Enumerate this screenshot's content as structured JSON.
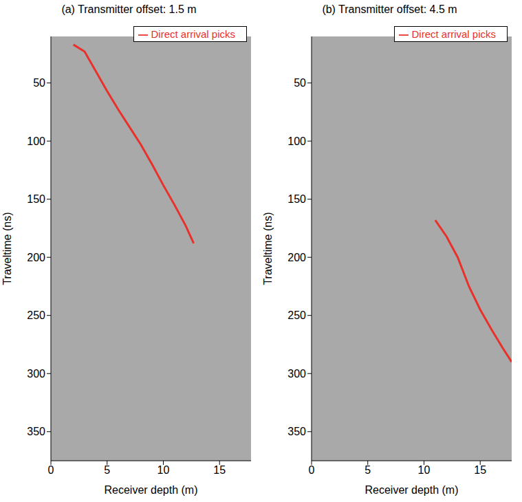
{
  "chart_data": [
    {
      "type": "line",
      "title": "(a) Transmitter offset: 1.5 m",
      "x_label": "Receiver depth (m)",
      "y_label": "Traveltime (ns)",
      "xlim": [
        0,
        17.8
      ],
      "ylim": [
        10,
        375
      ],
      "xticks": [
        0,
        5,
        10,
        15
      ],
      "yticks": [
        50,
        100,
        150,
        200,
        250,
        300,
        350
      ],
      "grid": false,
      "legend": "upper right",
      "series": [
        {
          "name": "Direct arrival picks",
          "color": "#e8312a",
          "x": [
            2,
            3,
            4,
            5,
            6,
            7,
            8,
            9,
            10,
            11,
            12,
            12.7
          ],
          "values": [
            17,
            23,
            40,
            57,
            73,
            88,
            103,
            120,
            138,
            155,
            173,
            188
          ]
        }
      ]
    },
    {
      "type": "line",
      "title": "(b) Transmitter offset: 4.5 m",
      "x_label": "Receiver depth (m)",
      "y_label": "Traveltime (ns)",
      "xlim": [
        0,
        17.8
      ],
      "ylim": [
        10,
        375
      ],
      "xticks": [
        0,
        5,
        10,
        15
      ],
      "yticks": [
        50,
        100,
        150,
        200,
        250,
        300,
        350
      ],
      "grid": false,
      "legend": "upper right",
      "series": [
        {
          "name": "Direct arrival picks",
          "color": "#e8312a",
          "x": [
            11,
            12,
            13,
            14,
            15,
            16,
            17,
            17.8
          ],
          "values": [
            168,
            182,
            200,
            225,
            245,
            262,
            278,
            290
          ]
        }
      ]
    }
  ]
}
